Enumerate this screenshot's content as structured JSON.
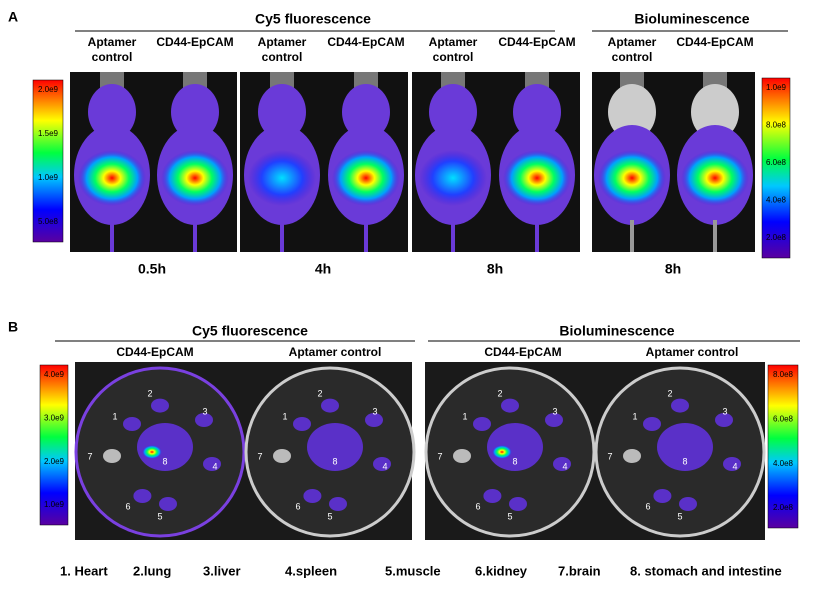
{
  "panel_a": {
    "label": "A",
    "groups": [
      "Cy5 fluorescence",
      "Bioluminescence"
    ],
    "column_headers": [
      [
        "Aptamer",
        "control"
      ],
      [
        "CD44-EpCAM"
      ],
      [
        "Aptamer",
        "control"
      ],
      [
        "CD44-EpCAM"
      ],
      [
        "Aptamer",
        "control"
      ],
      [
        "CD44-EpCAM"
      ],
      [
        "Aptamer",
        "control"
      ],
      [
        "CD44-EpCAM"
      ]
    ],
    "times": [
      "0.5h",
      "4h",
      "8h",
      "8h"
    ],
    "colorbar_left": [
      "2.0e9",
      "1.5e9",
      "1.0e9",
      "5.0e8"
    ],
    "colorbar_right": [
      "1.0e9",
      "8.0e8",
      "6.0e8",
      "4.0e8",
      "2.0e8"
    ]
  },
  "panel_b": {
    "label": "B",
    "groups": [
      "Cy5 fluorescence",
      "Bioluminescence"
    ],
    "dish_headers": [
      "CD44-EpCAM",
      "Aptamer control",
      "CD44-EpCAM",
      "Aptamer control"
    ],
    "organ_numbers": [
      "1",
      "2",
      "3",
      "4",
      "5",
      "6",
      "7",
      "8"
    ],
    "colorbar_left": [
      "4.0e9",
      "3.0e9",
      "2.0e9",
      "1.0e9"
    ],
    "colorbar_right": [
      "8.0e8",
      "6.0e8",
      "4.0e8",
      "2.0e8"
    ]
  },
  "legend": [
    "1. Heart",
    "2.lung",
    "3.liver",
    "4.spleen",
    "5.muscle",
    "6.kidney",
    "7.brain",
    "8. stomach and intestine"
  ]
}
